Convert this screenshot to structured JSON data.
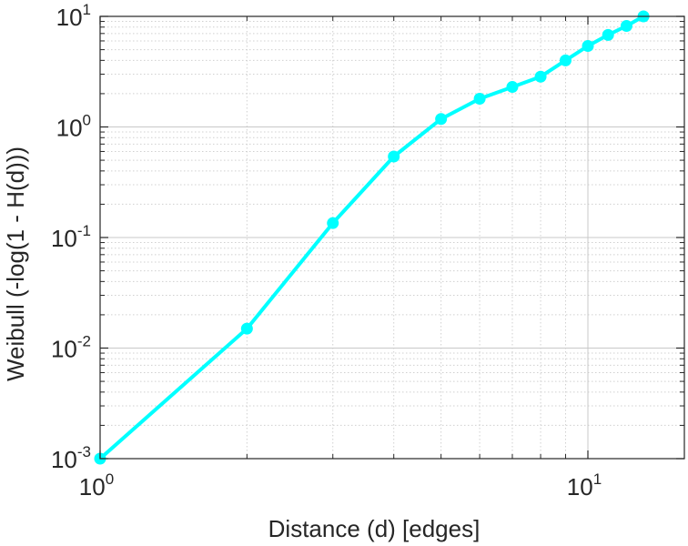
{
  "chart_data": {
    "type": "line",
    "title": "",
    "xlabel": "Distance (d) [edges]",
    "ylabel": "Weibull (-log(1 - H(d)))",
    "xscale": "log",
    "yscale": "log",
    "xlim": [
      1,
      16
    ],
    "ylim": [
      0.001,
      10
    ],
    "grid": "on (major solid, minor dotted)",
    "series": [
      {
        "name": "Weibull",
        "color": "#00ffff",
        "marker": "circle",
        "x": [
          1,
          2,
          3,
          4,
          5,
          6,
          7,
          8,
          9,
          10,
          11,
          12,
          13
        ],
        "y": [
          0.001,
          0.015,
          0.135,
          0.54,
          1.18,
          1.8,
          2.3,
          2.85,
          4.0,
          5.4,
          6.8,
          8.2,
          10.0
        ]
      }
    ],
    "xticks": [
      {
        "base": "10",
        "exp": "0",
        "value": 1
      },
      {
        "base": "10",
        "exp": "1",
        "value": 10
      }
    ],
    "yticks": [
      {
        "base": "10",
        "exp": "-3",
        "value": 0.001
      },
      {
        "base": "10",
        "exp": "-2",
        "value": 0.01
      },
      {
        "base": "10",
        "exp": "-1",
        "value": 0.1
      },
      {
        "base": "10",
        "exp": "0",
        "value": 1
      },
      {
        "base": "10",
        "exp": "1",
        "value": 10
      }
    ]
  }
}
